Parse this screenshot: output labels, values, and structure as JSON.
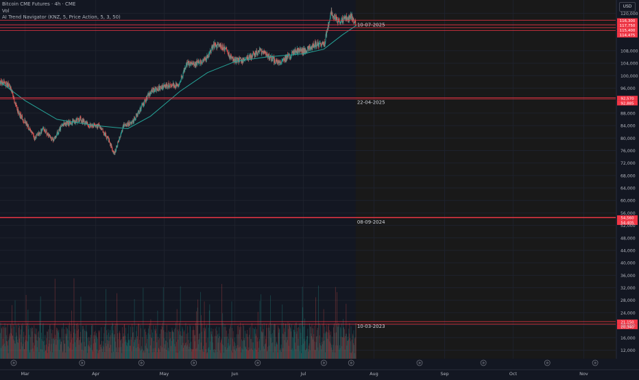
{
  "header": {
    "symbol_line": "Bitcoin CME Futures · 4h · CME",
    "vol_line": "Vol",
    "indicator_line": "AI Trend Navigator (KNZ, 5, Price Action, 5, 3, 50)",
    "currency": "USD"
  },
  "colors": {
    "background": "#131722",
    "future_shade": "#191919",
    "up": "#26a69a",
    "down": "#ef5350",
    "line": "#26a69a",
    "level": "#f23645"
  },
  "chart_data": {
    "type": "candlestick",
    "y_axis": {
      "ticks": [
        12000,
        16000,
        20000,
        24000,
        28000,
        32000,
        36000,
        40000,
        44000,
        48000,
        52000,
        56000,
        60000,
        64000,
        68000,
        72000,
        76000,
        80000,
        84000,
        88000,
        96000,
        100000,
        104000,
        108000,
        120000
      ],
      "range": [
        11000,
        122500
      ]
    },
    "x_axis": {
      "tick_labels": [
        "Mar",
        "Apr",
        "May",
        "Jun",
        "Jul",
        "Aug",
        "Sep",
        "Oct",
        "Nov"
      ]
    },
    "price_series": {
      "x": [
        "2025-02-18",
        "2025-02-22",
        "2025-02-26",
        "2025-03-01",
        "2025-03-05",
        "2025-03-09",
        "2025-03-13",
        "2025-03-17",
        "2025-03-21",
        "2025-03-25",
        "2025-03-29",
        "2025-04-02",
        "2025-04-06",
        "2025-04-09",
        "2025-04-13",
        "2025-04-17",
        "2025-04-21",
        "2025-04-25",
        "2025-04-29",
        "2025-05-03",
        "2025-05-07",
        "2025-05-11",
        "2025-05-15",
        "2025-05-19",
        "2025-05-23",
        "2025-05-27",
        "2025-05-31",
        "2025-06-04",
        "2025-06-08",
        "2025-06-12",
        "2025-06-16",
        "2025-06-20",
        "2025-06-24",
        "2025-06-28",
        "2025-07-02",
        "2025-07-06",
        "2025-07-10",
        "2025-07-13",
        "2025-07-16",
        "2025-07-19",
        "2025-07-22",
        "2025-07-24"
      ],
      "close": [
        98000,
        97000,
        88000,
        85000,
        80000,
        83000,
        79000,
        84000,
        85000,
        86000,
        84000,
        84000,
        80000,
        75000,
        84000,
        85000,
        90000,
        95000,
        96000,
        97000,
        97000,
        104000,
        104000,
        105000,
        110000,
        109000,
        105000,
        105000,
        106000,
        108000,
        106000,
        104000,
        106000,
        108000,
        108000,
        110000,
        110000,
        120000,
        118000,
        118000,
        119000,
        116500
      ]
    },
    "trend_line": {
      "x": [
        "2025-02-18",
        "2025-03-01",
        "2025-03-15",
        "2025-04-01",
        "2025-04-15",
        "2025-04-25",
        "2025-05-08",
        "2025-05-20",
        "2025-06-01",
        "2025-06-15",
        "2025-07-01",
        "2025-07-10",
        "2025-07-18",
        "2025-07-24"
      ],
      "y": [
        98000,
        92000,
        86000,
        84000,
        83000,
        87000,
        95000,
        101000,
        104500,
        106000,
        107000,
        108500,
        113000,
        116000
      ]
    },
    "horizontal_levels": [
      {
        "label": "10-07-2025",
        "prices": [
          "116,300",
          "117,750",
          "115,400",
          "114,475"
        ]
      },
      {
        "label": "22-04-2025",
        "prices": [
          "92,570",
          "92,885"
        ]
      },
      {
        "label": "08-09-2024",
        "prices": [
          "54,560",
          "54,405"
        ]
      },
      {
        "label": "10-03-2023",
        "prices": [
          "21,150",
          "20,340"
        ]
      }
    ],
    "volume": {
      "x_range": [
        "2025-02-18",
        "2025-07-24"
      ],
      "note_series": "volume histogram"
    },
    "future_region_start": "2025-07-24"
  }
}
